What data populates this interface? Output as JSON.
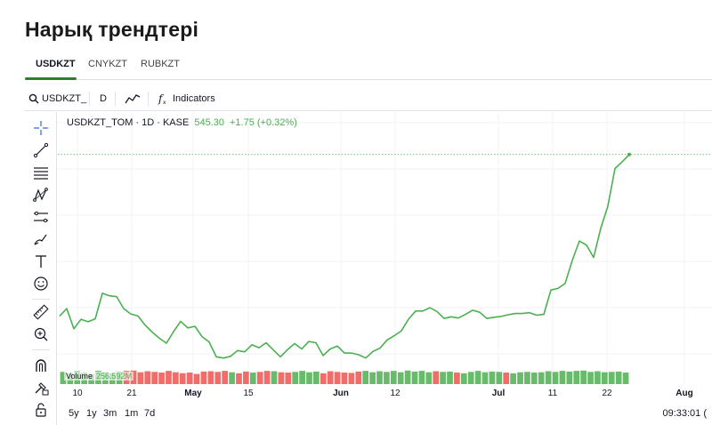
{
  "page": {
    "title": "Нарық трендтері"
  },
  "tabs": [
    {
      "label": "USDKZT",
      "active": true
    },
    {
      "label": "CNYKZT",
      "active": false
    },
    {
      "label": "RUBKZT",
      "active": false
    }
  ],
  "toolbar": {
    "symbol": "USDKZT_",
    "interval": "D",
    "chart_style_icon": "line-chart-icon",
    "indicators_label": "Indicators"
  },
  "drawing_tools": [
    "crosshair-icon",
    "trend-line-icon",
    "horizontal-lines-icon",
    "pattern-icon",
    "fib-tool-icon",
    "brush-icon",
    "text-icon",
    "emoji-icon",
    "ruler-icon",
    "zoom-in-icon",
    "magnet-icon",
    "lock-drawings-icon",
    "lock-icon"
  ],
  "legend": {
    "symbol": "USDKZT_TOM · 1D · KASE",
    "price": "545.30",
    "change": "+1.75 (+0.32%)"
  },
  "volume": {
    "label": "Volume",
    "value": "256.592M"
  },
  "colors": {
    "line": "#4caf50",
    "up": "#4caf50",
    "down": "#ef5350",
    "accent": "#2e7d32"
  },
  "chart_data": {
    "type": "line",
    "x_ticks": [
      "10",
      "21",
      "May",
      "15",
      "Jun",
      "12",
      "Jul",
      "11",
      "22",
      "Aug"
    ],
    "month_ticks": [
      "May",
      "Jun",
      "Jul",
      "Aug"
    ],
    "y_range": [
      490,
      550
    ],
    "y": [
      506.1,
      507.9,
      503.0,
      505.3,
      504.7,
      505.4,
      511.6,
      511.0,
      510.8,
      507.9,
      506.6,
      506.1,
      503.9,
      502.2,
      500.7,
      499.5,
      502.3,
      504.8,
      503.2,
      503.6,
      501.1,
      499.8,
      496.2,
      495.9,
      496.3,
      497.7,
      497.4,
      499.1,
      498.4,
      499.6,
      497.9,
      496.2,
      497.9,
      499.4,
      498.1,
      499.9,
      499.6,
      496.5,
      498.1,
      498.8,
      497.1,
      497.1,
      496.7,
      495.9,
      497.5,
      498.3,
      500.3,
      501.3,
      502.5,
      505.3,
      507.3,
      507.3,
      508.1,
      507.2,
      505.5,
      505.9,
      505.6,
      506.5,
      507.5,
      507.0,
      505.5,
      505.8,
      506.0,
      506.4,
      506.7,
      506.7,
      506.9,
      506.3,
      506.5,
      512.4,
      512.8,
      514.0,
      519.6,
      524.3,
      523.3,
      520.3,
      527.4,
      532.8,
      541.9,
      543.5,
      545.3
    ],
    "volume": [
      [
        3.6,
        1
      ],
      [
        3.2,
        1
      ],
      [
        3.8,
        1
      ],
      [
        3.4,
        1
      ],
      [
        3.0,
        1
      ],
      [
        3.9,
        1
      ],
      [
        3.5,
        1
      ],
      [
        3.2,
        1
      ],
      [
        3.7,
        1
      ],
      [
        3.9,
        0
      ],
      [
        4.0,
        0
      ],
      [
        3.5,
        0
      ],
      [
        3.8,
        0
      ],
      [
        3.6,
        0
      ],
      [
        3.4,
        0
      ],
      [
        3.9,
        0
      ],
      [
        3.5,
        0
      ],
      [
        3.2,
        0
      ],
      [
        3.4,
        0
      ],
      [
        3.0,
        0
      ],
      [
        3.7,
        0
      ],
      [
        3.8,
        0
      ],
      [
        3.6,
        0
      ],
      [
        3.9,
        0
      ],
      [
        3.5,
        1
      ],
      [
        3.2,
        0
      ],
      [
        3.7,
        0
      ],
      [
        3.4,
        1
      ],
      [
        3.6,
        0
      ],
      [
        3.9,
        0
      ],
      [
        3.8,
        1
      ],
      [
        3.5,
        0
      ],
      [
        3.4,
        0
      ],
      [
        3.6,
        1
      ],
      [
        3.9,
        1
      ],
      [
        3.5,
        1
      ],
      [
        3.7,
        1
      ],
      [
        3.2,
        0
      ],
      [
        3.8,
        0
      ],
      [
        3.6,
        0
      ],
      [
        3.4,
        0
      ],
      [
        3.3,
        0
      ],
      [
        3.7,
        0
      ],
      [
        3.9,
        1
      ],
      [
        3.5,
        1
      ],
      [
        3.8,
        1
      ],
      [
        3.6,
        1
      ],
      [
        3.9,
        1
      ],
      [
        3.5,
        1
      ],
      [
        4.0,
        1
      ],
      [
        3.7,
        1
      ],
      [
        3.9,
        1
      ],
      [
        3.5,
        1
      ],
      [
        3.8,
        0
      ],
      [
        3.6,
        1
      ],
      [
        3.7,
        1
      ],
      [
        3.4,
        0
      ],
      [
        3.2,
        1
      ],
      [
        3.6,
        1
      ],
      [
        3.9,
        1
      ],
      [
        3.5,
        1
      ],
      [
        3.7,
        1
      ],
      [
        3.6,
        1
      ],
      [
        3.4,
        0
      ],
      [
        3.2,
        1
      ],
      [
        3.5,
        1
      ],
      [
        3.6,
        1
      ],
      [
        3.4,
        1
      ],
      [
        3.5,
        1
      ],
      [
        3.8,
        1
      ],
      [
        3.6,
        1
      ],
      [
        3.9,
        1
      ],
      [
        3.7,
        1
      ],
      [
        3.9,
        1
      ],
      [
        4.0,
        1
      ],
      [
        3.6,
        1
      ],
      [
        3.8,
        1
      ],
      [
        3.5,
        1
      ],
      [
        3.6,
        1
      ],
      [
        3.7,
        1
      ],
      [
        3.4,
        1
      ]
    ]
  },
  "ranges": [
    "5y",
    "1y",
    "3m",
    "1m",
    "7d"
  ],
  "clock": "09:33:01 ("
}
